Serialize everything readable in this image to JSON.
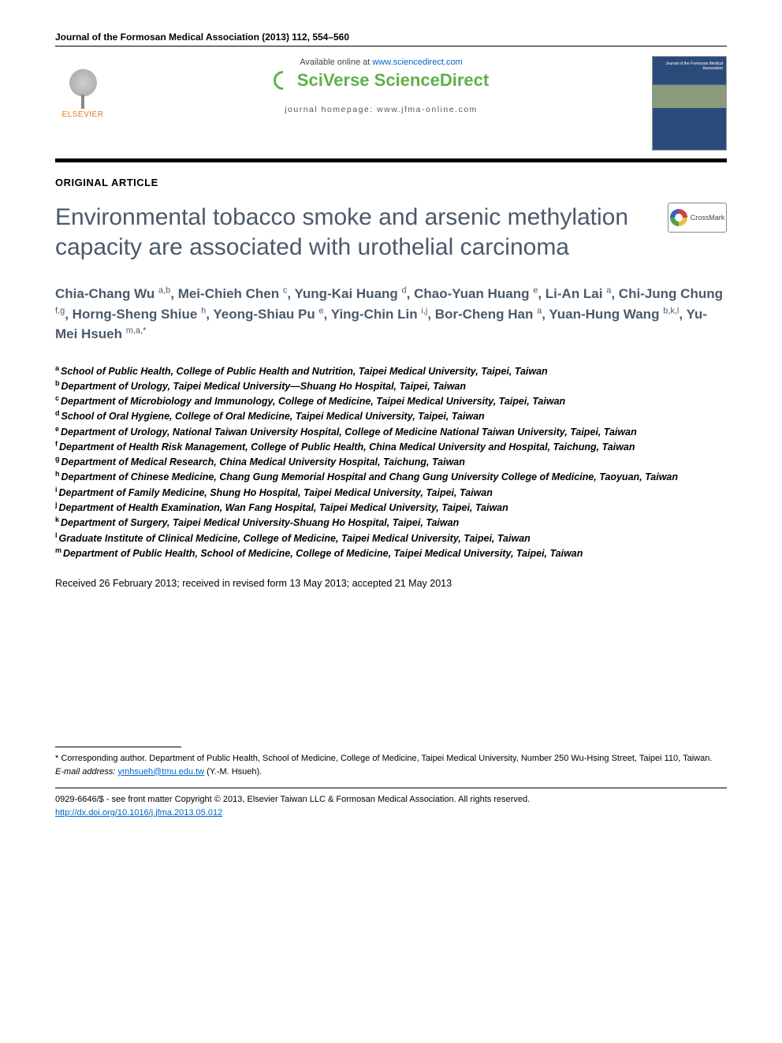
{
  "journal_header": "Journal of the Formosan Medical Association (2013) 112, 554–560",
  "banner": {
    "available_prefix": "Available online at ",
    "available_url": "www.sciencedirect.com",
    "sd_brand": "SciVerse ScienceDirect",
    "homepage_prefix": "journal homepage: ",
    "homepage_url": "www.jfma-online.com",
    "elsevier_label": "ELSEVIER",
    "cover_title": "Journal of the Formosan Medical Association"
  },
  "crossmark_label": "CrossMark",
  "article_type": "ORIGINAL ARTICLE",
  "title": "Environmental tobacco smoke and arsenic methylation capacity are associated with urothelial carcinoma",
  "authors_html": "Chia-Chang Wu <sup>a,b</sup>, Mei-Chieh Chen <sup>c</sup>, Yung-Kai Huang <sup>d</sup>, Chao-Yuan Huang <sup>e</sup>, Li-An Lai <sup>a</sup>, Chi-Jung Chung <sup>f,g</sup>, Horng-Sheng Shiue <sup>h</sup>, Yeong-Shiau Pu <sup>e</sup>, Ying-Chin Lin <sup>i,j</sup>, Bor-Cheng Han <sup>a</sup>, Yuan-Hung Wang <sup>b,k,l</sup>, Yu-Mei Hsueh <sup>m,a,*</sup>",
  "affiliations": [
    {
      "sup": "a",
      "text": "School of Public Health, College of Public Health and Nutrition, Taipei Medical University, Taipei, Taiwan"
    },
    {
      "sup": "b",
      "text": "Department of Urology, Taipei Medical University—Shuang Ho Hospital, Taipei, Taiwan"
    },
    {
      "sup": "c",
      "text": "Department of Microbiology and Immunology, College of Medicine, Taipei Medical University, Taipei, Taiwan"
    },
    {
      "sup": "d",
      "text": "School of Oral Hygiene, College of Oral Medicine, Taipei Medical University, Taipei, Taiwan"
    },
    {
      "sup": "e",
      "text": "Department of Urology, National Taiwan University Hospital, College of Medicine National Taiwan University, Taipei, Taiwan"
    },
    {
      "sup": "f",
      "text": "Department of Health Risk Management, College of Public Health, China Medical University and Hospital, Taichung, Taiwan"
    },
    {
      "sup": "g",
      "text": "Department of Medical Research, China Medical University Hospital, Taichung, Taiwan"
    },
    {
      "sup": "h",
      "text": "Department of Chinese Medicine, Chang Gung Memorial Hospital and Chang Gung University College of Medicine, Taoyuan, Taiwan"
    },
    {
      "sup": "i",
      "text": "Department of Family Medicine, Shung Ho Hospital, Taipei Medical University, Taipei, Taiwan"
    },
    {
      "sup": "j",
      "text": "Department of Health Examination, Wan Fang Hospital, Taipei Medical University, Taipei, Taiwan"
    },
    {
      "sup": "k",
      "text": "Department of Surgery, Taipei Medical University-Shuang Ho Hospital, Taipei, Taiwan"
    },
    {
      "sup": "l",
      "text": "Graduate Institute of Clinical Medicine, College of Medicine, Taipei Medical University, Taipei, Taiwan"
    },
    {
      "sup": "m",
      "text": "Department of Public Health, School of Medicine, College of Medicine, Taipei Medical University, Taipei, Taiwan"
    }
  ],
  "dates": "Received 26 February 2013; received in revised form 13 May 2013; accepted 21 May 2013",
  "corresponding": {
    "text": "* Corresponding author. Department of Public Health, School of Medicine, College of Medicine, Taipei Medical University, Number 250 Wu-Hsing Street, Taipei 110, Taiwan.",
    "email_label": "E-mail address:",
    "email": "ymhsueh@tmu.edu.tw",
    "email_suffix": " (Y.-M. Hsueh)."
  },
  "bottom": {
    "issn_line": "0929-6646/$ - see front matter Copyright © 2013, Elsevier Taiwan LLC & Formosan Medical Association. All rights reserved.",
    "doi": "http://dx.doi.org/10.1016/j.jfma.2013.05.012"
  },
  "colors": {
    "title_color": "#4a5a6a",
    "link_color": "#0066cc",
    "elsevier_orange": "#e67817",
    "sd_green": "#5fb04a"
  }
}
